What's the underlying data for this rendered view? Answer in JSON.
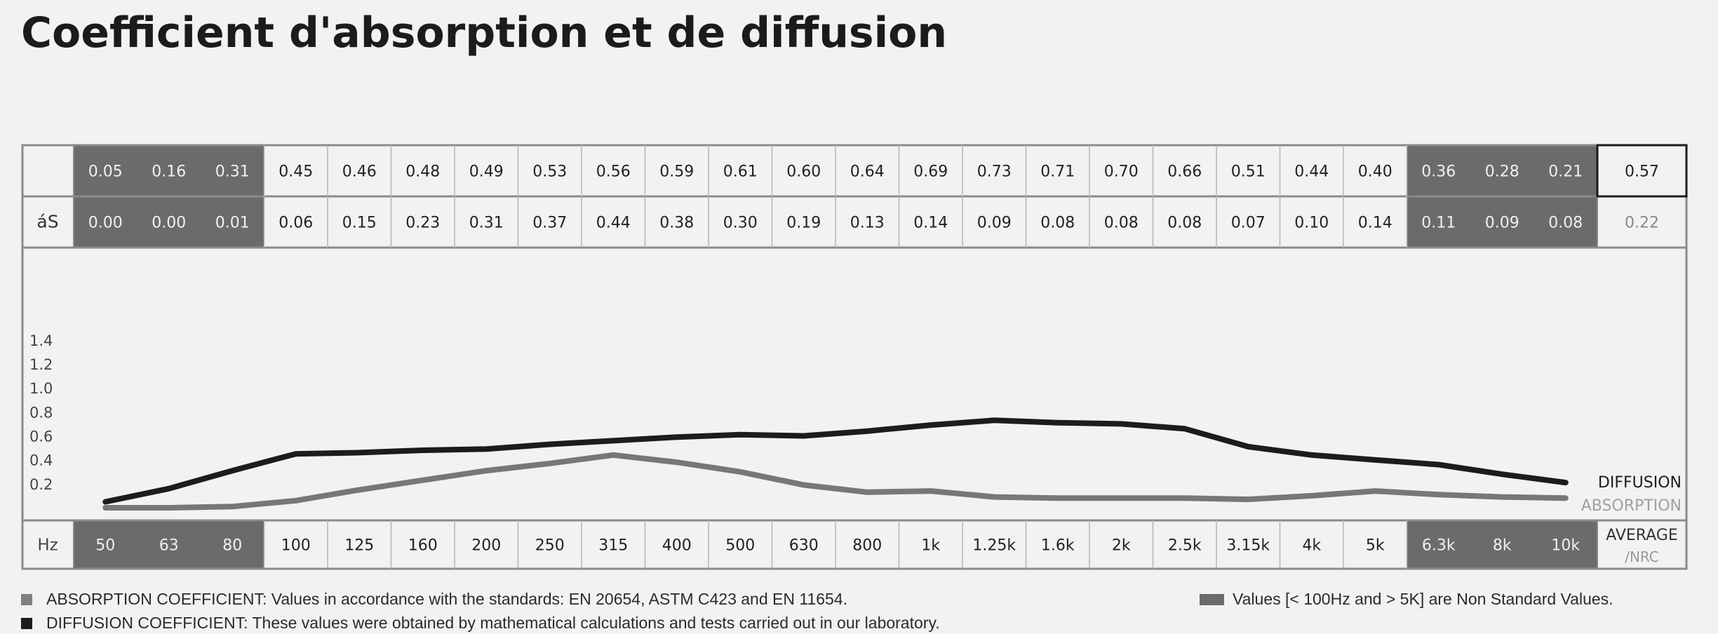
{
  "page": {
    "title": "Coefficient d'absorption et de diffusion"
  },
  "chart_data": {
    "type": "line",
    "title": "",
    "row_labels": {
      "diffusion": "",
      "absorption": "áS",
      "frequency": "Hz"
    },
    "x": [
      "50",
      "63",
      "80",
      "100",
      "125",
      "160",
      "200",
      "250",
      "315",
      "400",
      "500",
      "630",
      "800",
      "1k",
      "1.25k",
      "1.6k",
      "2k",
      "2.5k",
      "3.15k",
      "4k",
      "5k",
      "6.3k",
      "8k",
      "10k"
    ],
    "y_ticks": [
      "0.2",
      "0.4",
      "0.6",
      "0.8",
      "1.0",
      "1.2",
      "1.4"
    ],
    "ylim": [
      0,
      1.5
    ],
    "series": [
      {
        "name": "DIFFUSION",
        "color": "#1c1c1c",
        "values": [
          0.05,
          0.16,
          0.31,
          0.45,
          0.46,
          0.48,
          0.49,
          0.53,
          0.56,
          0.59,
          0.61,
          0.6,
          0.64,
          0.69,
          0.73,
          0.71,
          0.7,
          0.66,
          0.51,
          0.44,
          0.4,
          0.36,
          0.28,
          0.21
        ],
        "labels": [
          "0.05",
          "0.16",
          "0.31",
          "0.45",
          "0.46",
          "0.48",
          "0.49",
          "0.53",
          "0.56",
          "0.59",
          "0.61",
          "0.60",
          "0.64",
          "0.69",
          "0.73",
          "0.71",
          "0.70",
          "0.66",
          "0.51",
          "0.44",
          "0.40",
          "0.36",
          "0.28",
          "0.21"
        ],
        "average": "0.57"
      },
      {
        "name": "ABSORPTION",
        "color": "#777777",
        "values": [
          0.0,
          0.0,
          0.01,
          0.06,
          0.15,
          0.23,
          0.31,
          0.37,
          0.44,
          0.38,
          0.3,
          0.19,
          0.13,
          0.14,
          0.09,
          0.08,
          0.08,
          0.08,
          0.07,
          0.1,
          0.14,
          0.11,
          0.09,
          0.08
        ],
        "labels": [
          "0.00",
          "0.00",
          "0.01",
          "0.06",
          "0.15",
          "0.23",
          "0.31",
          "0.37",
          "0.44",
          "0.38",
          "0.30",
          "0.19",
          "0.13",
          "0.14",
          "0.09",
          "0.08",
          "0.08",
          "0.08",
          "0.07",
          "0.10",
          "0.14",
          "0.11",
          "0.09",
          "0.08"
        ],
        "average": "0.22"
      }
    ],
    "average_label": {
      "line1": "AVERAGE",
      "line2": "/NRC"
    },
    "non_standard_indices": [
      0,
      1,
      2,
      21,
      22,
      23
    ],
    "shading_color": "#6b6b6b",
    "grid": false
  },
  "legend": {
    "absorption_text": "ABSORPTION COEFFICIENT: Values in accordance with the standards: EN 20654, ASTM C423 and EN 11654.",
    "absorption_color": "#808080",
    "diffusion_text": "DIFFUSION COEFFICIENT: These values were obtained by mathematical calculations and tests carried out in our laboratory.",
    "diffusion_color": "#1c1c1c",
    "nonstandard_text": "Values [< 100Hz and > 5K] are Non Standard Values.",
    "nonstandard_color": "#6b6b6b"
  }
}
